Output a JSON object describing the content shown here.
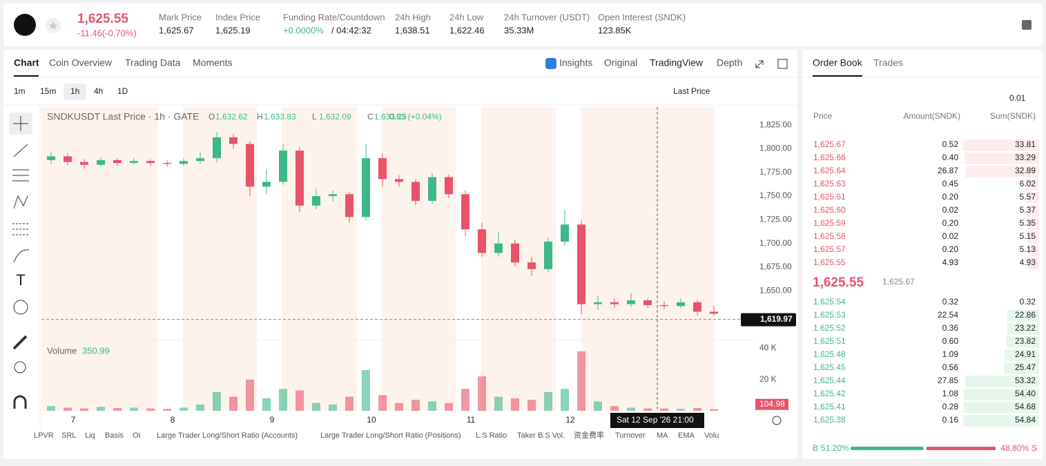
{
  "header": {
    "price": "1,625.55",
    "change": "-11.46(-0.70%)",
    "stats": [
      {
        "label": "Mark Price",
        "value": "1,625.67"
      },
      {
        "label": "Index Price",
        "value": "1,625.19"
      },
      {
        "label": "Funding Rate/Countdown",
        "value": "+0.0000%",
        "value2": "/ 04:42:32"
      },
      {
        "label": "24h High",
        "value": "1,638.51"
      },
      {
        "label": "24h Low",
        "value": "1,622.46"
      },
      {
        "label": "24h Turnover (USDT)",
        "value": "35.33M"
      },
      {
        "label": "Open Interest (SNDK)",
        "value": "123.85K"
      }
    ]
  },
  "tabs": [
    "Chart",
    "Coin Overview",
    "Trading Data",
    "Moments"
  ],
  "view_tabs": [
    "Insights",
    "Original",
    "TradingView",
    "Depth"
  ],
  "intervals": [
    "1m",
    "15m",
    "1h",
    "4h",
    "1D"
  ],
  "price_source": "Last Price",
  "chart_data": {
    "type": "candlestick",
    "legend": {
      "title": "SNDKUSDT Last Price · 1h · GATE",
      "o_label": "O",
      "o": "1,632.62",
      "h_label": "H",
      "h": "1,633.83",
      "l_label": "L",
      "l": "1,632.09",
      "c_label": "C",
      "c": "1,633.25",
      "change": "0.63 (+0.04%)"
    },
    "up_color": "#3cb88a",
    "down_color": "#e8536a",
    "ylim": [
      1600,
      1844
    ],
    "yticks": [
      {
        "value": 1825,
        "label": "1,825.00"
      },
      {
        "value": 1800,
        "label": "1,800.00"
      },
      {
        "value": 1775,
        "label": "1,775.00"
      },
      {
        "value": 1750,
        "label": "1,750.00"
      },
      {
        "value": 1725,
        "label": "1,725.00"
      },
      {
        "value": 1700,
        "label": "1,700.00"
      },
      {
        "value": 1675,
        "label": "1,675.00"
      },
      {
        "value": 1650,
        "label": "1,650.00"
      }
    ],
    "last_price": {
      "value": 1619.97,
      "label": "1,619.97"
    },
    "x_labels": [
      "7",
      "8",
      "9",
      "10",
      "11",
      "12"
    ],
    "crosshair_label": "Sat 12 Sep '26   21:00",
    "ohlc": [
      [
        1788,
        1796,
        1784,
        1792
      ],
      [
        1792,
        1795,
        1782,
        1786
      ],
      [
        1786,
        1789,
        1779,
        1783
      ],
      [
        1783,
        1791,
        1781,
        1788
      ],
      [
        1788,
        1790,
        1782,
        1785
      ],
      [
        1785,
        1790,
        1783,
        1787
      ],
      [
        1787,
        1789,
        1782,
        1785
      ],
      [
        1785,
        1788,
        1781,
        1784
      ],
      [
        1784,
        1790,
        1782,
        1787
      ],
      [
        1787,
        1796,
        1784,
        1790
      ],
      [
        1790,
        1818,
        1786,
        1812
      ],
      [
        1812,
        1816,
        1800,
        1805
      ],
      [
        1805,
        1808,
        1750,
        1760
      ],
      [
        1760,
        1778,
        1752,
        1765
      ],
      [
        1765,
        1805,
        1762,
        1798
      ],
      [
        1798,
        1802,
        1733,
        1740
      ],
      [
        1740,
        1758,
        1736,
        1750
      ],
      [
        1750,
        1756,
        1744,
        1752
      ],
      [
        1752,
        1754,
        1722,
        1728
      ],
      [
        1728,
        1805,
        1724,
        1790
      ],
      [
        1790,
        1795,
        1760,
        1768
      ],
      [
        1768,
        1772,
        1760,
        1765
      ],
      [
        1765,
        1768,
        1740,
        1745
      ],
      [
        1745,
        1774,
        1742,
        1770
      ],
      [
        1770,
        1773,
        1748,
        1752
      ],
      [
        1752,
        1756,
        1708,
        1715
      ],
      [
        1715,
        1722,
        1686,
        1690
      ],
      [
        1690,
        1712,
        1686,
        1700
      ],
      [
        1700,
        1704,
        1676,
        1680
      ],
      [
        1680,
        1686,
        1666,
        1673
      ],
      [
        1673,
        1706,
        1670,
        1702
      ],
      [
        1702,
        1736,
        1698,
        1720
      ],
      [
        1720,
        1725,
        1625,
        1636
      ],
      [
        1636,
        1645,
        1630,
        1638
      ],
      [
        1638,
        1642,
        1632,
        1636
      ],
      [
        1636,
        1648,
        1633,
        1640
      ],
      [
        1640,
        1642,
        1632,
        1635
      ],
      [
        1635,
        1639,
        1631,
        1634
      ],
      [
        1634,
        1642,
        1632,
        1638
      ],
      [
        1638,
        1640,
        1624,
        1628
      ],
      [
        1628,
        1634,
        1624,
        1626
      ]
    ],
    "volume_title": "Volume",
    "volume_last": "350.99",
    "volume_ylim": [
      0,
      45000
    ],
    "volume_yticks": [
      {
        "value": 40000,
        "label": "40 K"
      },
      {
        "value": 20000,
        "label": "20 K"
      }
    ],
    "volume_tag": {
      "value": 104.98,
      "label": "104.98"
    },
    "volume": [
      3000,
      2000,
      1500,
      2500,
      1800,
      2000,
      1500,
      1200,
      2000,
      4000,
      12000,
      9000,
      20000,
      8000,
      14000,
      13000,
      5000,
      4000,
      9000,
      26000,
      10000,
      5000,
      7000,
      6000,
      5000,
      14000,
      22000,
      9000,
      8000,
      7000,
      12000,
      14000,
      38000,
      6000,
      3000,
      2000,
      1500,
      1500,
      1200,
      1800,
      1000
    ]
  },
  "indicators": [
    "LPVR",
    "SRL",
    "Liq",
    "Basis",
    "OI",
    "Large Trader Long/Short Ratio (Accounts)",
    "Large Trader Long/Short Ratio (Positions)",
    "L.S Ratio",
    "Taker B.S Vol.",
    "资金费率",
    "Turnover",
    "MA",
    "EMA",
    "Volu"
  ],
  "orderbook": {
    "tabs": [
      "Order Book",
      "Trades"
    ],
    "precision": "0.01",
    "columns": [
      "Price",
      "Amount(SNDK)",
      "Sum(SNDK)"
    ],
    "asks": [
      {
        "price": "1,625.67",
        "amount": "0.52",
        "sum": {
          "value": 33.81,
          "label": "33.81"
        }
      },
      {
        "price": "1,625.66",
        "amount": "0.40",
        "sum": {
          "value": 33.29,
          "label": "33.29"
        }
      },
      {
        "price": "1,625.64",
        "amount": "26.87",
        "sum": {
          "value": 32.89,
          "label": "32.89"
        }
      },
      {
        "price": "1,625.63",
        "amount": "0.45",
        "sum": {
          "value": 6.02,
          "label": "6.02"
        }
      },
      {
        "price": "1,625.61",
        "amount": "0.20",
        "sum": {
          "value": 5.57,
          "label": "5.57"
        }
      },
      {
        "price": "1,625.60",
        "amount": "0.02",
        "sum": {
          "value": 5.37,
          "label": "5.37"
        }
      },
      {
        "price": "1,625.59",
        "amount": "0.20",
        "sum": {
          "value": 5.35,
          "label": "5.35"
        }
      },
      {
        "price": "1,625.58",
        "amount": "0.02",
        "sum": {
          "value": 5.15,
          "label": "5.15"
        }
      },
      {
        "price": "1,625.57",
        "amount": "0.20",
        "sum": {
          "value": 5.13,
          "label": "5.13"
        }
      },
      {
        "price": "1,625.55",
        "amount": "4.93",
        "sum": {
          "value": 4.93,
          "label": "4.93"
        }
      }
    ],
    "mid_price": "1,625.55",
    "mid_mark": "1,625.67",
    "bids": [
      {
        "price": "1,625.54",
        "amount": "0.32",
        "sum": {
          "value": 0.32,
          "label": "0.32"
        }
      },
      {
        "price": "1,625.53",
        "amount": "22.54",
        "sum": {
          "value": 22.86,
          "label": "22.86"
        }
      },
      {
        "price": "1,625.52",
        "amount": "0.36",
        "sum": {
          "value": 23.22,
          "label": "23.22"
        }
      },
      {
        "price": "1,625.51",
        "amount": "0.60",
        "sum": {
          "value": 23.82,
          "label": "23.82"
        }
      },
      {
        "price": "1,625.48",
        "amount": "1.09",
        "sum": {
          "value": 24.91,
          "label": "24.91"
        }
      },
      {
        "price": "1,625.45",
        "amount": "0.56",
        "sum": {
          "value": 25.47,
          "label": "25.47"
        }
      },
      {
        "price": "1,625.44",
        "amount": "27.85",
        "sum": {
          "value": 53.32,
          "label": "53.32"
        }
      },
      {
        "price": "1,625.42",
        "amount": "1.08",
        "sum": {
          "value": 54.4,
          "label": "54.40"
        }
      },
      {
        "price": "1,625.41",
        "amount": "0.28",
        "sum": {
          "value": 54.68,
          "label": "54.68"
        }
      },
      {
        "price": "1,625.38",
        "amount": "0.16",
        "sum": {
          "value": 54.84,
          "label": "54.84"
        }
      }
    ],
    "buy_letter": "B",
    "buy_ratio": {
      "value": 51.2,
      "label": "51.20%"
    },
    "sell_ratio": {
      "value": 48.8,
      "label": "48.80%"
    },
    "sell_letter": "S"
  }
}
